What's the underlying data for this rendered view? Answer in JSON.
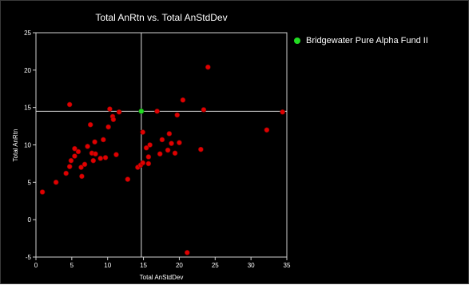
{
  "chart_data": {
    "type": "scatter",
    "title": "Total AnRtn vs. Total AnStdDev",
    "xlabel": "Total AnStdDev",
    "ylabel": "Total AnRtn",
    "xlim": [
      0,
      35
    ],
    "ylim": [
      -5,
      25
    ],
    "xticks": [
      0,
      5,
      10,
      15,
      20,
      25,
      30,
      35
    ],
    "yticks": [
      -5,
      0,
      5,
      10,
      15,
      20,
      25
    ],
    "grid": false,
    "legend_position": "top-right",
    "crosshair": {
      "x": 14.7,
      "y": 14.5
    },
    "highlight": {
      "name": "Bridgewater Pure Alpha Fund II",
      "x": 14.7,
      "y": 14.5,
      "color": "#22dd22"
    },
    "series": [
      {
        "color": "#e00000",
        "points": [
          [
            0.9,
            3.7
          ],
          [
            2.8,
            5.0
          ],
          [
            4.2,
            6.2
          ],
          [
            4.7,
            7.1
          ],
          [
            4.9,
            7.9
          ],
          [
            5.4,
            8.5
          ],
          [
            5.4,
            9.5
          ],
          [
            5.9,
            9.1
          ],
          [
            6.3,
            7.0
          ],
          [
            6.4,
            5.8
          ],
          [
            6.8,
            7.4
          ],
          [
            7.2,
            9.8
          ],
          [
            7.6,
            12.7
          ],
          [
            7.8,
            8.9
          ],
          [
            8.0,
            7.9
          ],
          [
            8.2,
            10.4
          ],
          [
            8.3,
            8.8
          ],
          [
            4.7,
            15.4
          ],
          [
            9.0,
            8.2
          ],
          [
            9.4,
            10.7
          ],
          [
            9.7,
            8.3
          ],
          [
            10.1,
            12.4
          ],
          [
            10.3,
            14.8
          ],
          [
            10.7,
            13.8
          ],
          [
            10.8,
            13.4
          ],
          [
            11.2,
            8.7
          ],
          [
            11.6,
            14.4
          ],
          [
            12.8,
            5.4
          ],
          [
            14.2,
            7.0
          ],
          [
            14.6,
            7.3
          ],
          [
            14.9,
            7.6
          ],
          [
            14.9,
            11.7
          ],
          [
            15.4,
            9.6
          ],
          [
            15.7,
            8.4
          ],
          [
            15.7,
            7.5
          ],
          [
            15.9,
            10.0
          ],
          [
            16.9,
            14.5
          ],
          [
            17.3,
            8.8
          ],
          [
            17.6,
            10.7
          ],
          [
            18.4,
            9.3
          ],
          [
            18.6,
            11.5
          ],
          [
            18.9,
            10.2
          ],
          [
            19.4,
            8.9
          ],
          [
            19.7,
            14.0
          ],
          [
            20.0,
            10.3
          ],
          [
            20.5,
            16.0
          ],
          [
            21.1,
            -4.4
          ],
          [
            23.0,
            9.4
          ],
          [
            23.4,
            14.7
          ],
          [
            24.0,
            20.4
          ],
          [
            32.2,
            12.0
          ],
          [
            34.4,
            14.4
          ]
        ]
      }
    ]
  }
}
